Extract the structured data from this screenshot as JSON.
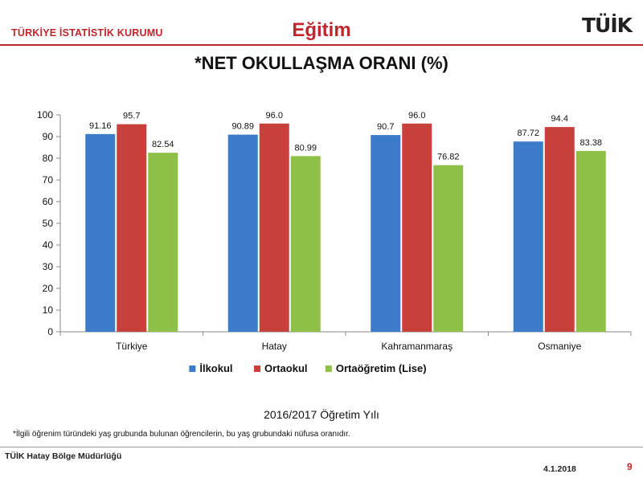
{
  "header": {
    "org": "TÜRKİYE İSTATİSTİK KURUMU",
    "section": "Eğitim",
    "logo": "TÜİK"
  },
  "chart_data": {
    "type": "bar",
    "title": "*NET OKULLAŞMA ORANI (%)",
    "xlabel": "2016/2017 Öğretim Yılı",
    "ylabel": "",
    "ylim": [
      0,
      100
    ],
    "yticks": [
      0,
      10,
      20,
      30,
      40,
      50,
      60,
      70,
      80,
      90,
      100
    ],
    "categories": [
      "Türkiye",
      "Hatay",
      "Kahramanmaraş",
      "Osmaniye"
    ],
    "series": [
      {
        "name": "İlkokul",
        "color": "#3c7bc9",
        "values": [
          91.16,
          90.89,
          90.7,
          87.72
        ],
        "labels": [
          "91.16",
          "90.89",
          "90.7",
          "87.72"
        ]
      },
      {
        "name": "Ortaokul",
        "color": "#c8403c",
        "values": [
          95.7,
          96.0,
          96.0,
          94.4
        ],
        "labels": [
          "95.7",
          "96.0",
          "96.0",
          "94.4"
        ]
      },
      {
        "name": "Ortaöğretim (Lise)",
        "color": "#8ebf46",
        "values": [
          82.54,
          80.99,
          76.82,
          83.38
        ],
        "labels": [
          "82.54",
          "80.99",
          "76.82",
          "83.38"
        ]
      }
    ],
    "legend": "bottom",
    "grid": false
  },
  "footnote": "*İlgili öğrenim türündeki yaş grubunda bulunan öğrencilerin, bu yaş  grubundaki nüfusa oranıdır.",
  "footer": {
    "region": "TÜİK Hatay Bölge Müdürlüğü",
    "date": "4.1.2018",
    "page": "9"
  }
}
